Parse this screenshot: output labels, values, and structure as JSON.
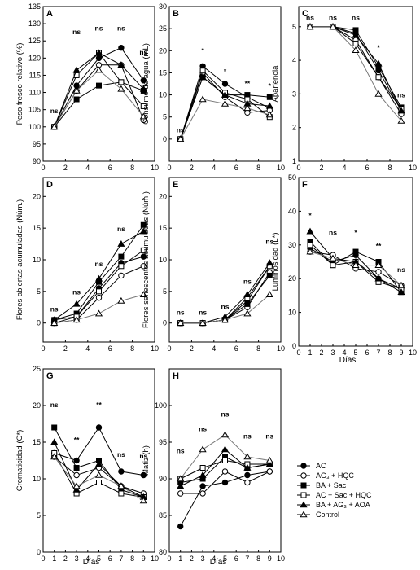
{
  "x_axis_label": "Días",
  "legend": {
    "entries": [
      {
        "id": "AC",
        "label": "AC",
        "marker": "filled-circle"
      },
      {
        "id": "AG3HQC",
        "label": "AG₃ + HQC",
        "marker": "open-circle"
      },
      {
        "id": "BASac",
        "label": "BA + Sac",
        "marker": "filled-square"
      },
      {
        "id": "ACSacHQC",
        "label": "AC + Sac + HQC",
        "marker": "open-square"
      },
      {
        "id": "BAAG3AOA",
        "label": "BA + AG₃ + AOA",
        "marker": "filled-triangle"
      },
      {
        "id": "Control",
        "label": "Control",
        "marker": "open-triangle"
      }
    ]
  },
  "chart_data": [
    {
      "panel": "A",
      "type": "line",
      "ylabel": "Peso fresco relativo (%)",
      "xlim": [
        0,
        10
      ],
      "ylim": [
        90,
        135
      ],
      "xticks": [
        0,
        2,
        4,
        6,
        8,
        10
      ],
      "yticks": [
        90,
        95,
        100,
        105,
        110,
        115,
        120,
        125,
        130,
        135
      ],
      "x": [
        1,
        3,
        5,
        7,
        9
      ],
      "series": [
        {
          "id": "AC",
          "values": [
            100,
            112,
            120,
            123,
            113.5
          ]
        },
        {
          "id": "AG3HQC",
          "values": [
            100,
            110.5,
            118,
            118,
            102
          ]
        },
        {
          "id": "BASac",
          "values": [
            100,
            108,
            112,
            113,
            110.5
          ]
        },
        {
          "id": "ACSacHQC",
          "values": [
            100,
            115,
            121.5,
            113,
            106
          ]
        },
        {
          "id": "BAAG3AOA",
          "values": [
            100,
            116.5,
            121.5,
            118,
            111
          ]
        },
        {
          "id": "Control",
          "values": [
            100,
            110.5,
            116.5,
            111,
            103
          ]
        }
      ],
      "annotations": [
        {
          "x": 1,
          "text": "ns",
          "y": 104
        },
        {
          "x": 3,
          "text": "ns",
          "y": 127
        },
        {
          "x": 5,
          "text": "ns",
          "y": 128
        },
        {
          "x": 7,
          "text": "ns",
          "y": 128
        },
        {
          "x": 9,
          "text": "ns",
          "y": 121
        }
      ]
    },
    {
      "panel": "B",
      "type": "line",
      "ylabel": "Consumo de agua (mL)",
      "xlim": [
        0,
        10
      ],
      "ylim": [
        -5,
        30
      ],
      "xticks": [
        0,
        2,
        4,
        6,
        8,
        10
      ],
      "yticks": [
        0,
        5,
        10,
        15,
        20,
        25,
        30
      ],
      "x": [
        1,
        3,
        5,
        7,
        9
      ],
      "series": [
        {
          "id": "AC",
          "values": [
            0,
            16.5,
            12.5,
            9.5,
            7
          ]
        },
        {
          "id": "AG3HQC",
          "values": [
            0,
            15,
            9.5,
            6,
            6.5
          ]
        },
        {
          "id": "BASac",
          "values": [
            0,
            14,
            10,
            10,
            9.5
          ]
        },
        {
          "id": "ACSacHQC",
          "values": [
            0,
            15.5,
            10.5,
            9,
            5
          ]
        },
        {
          "id": "BAAG3AOA",
          "values": [
            0,
            14,
            10,
            8,
            7.5
          ]
        },
        {
          "id": "Control",
          "values": [
            0,
            9,
            8,
            7,
            5.5
          ]
        }
      ],
      "annotations": [
        {
          "x": 1,
          "text": "ns",
          "y": 1.5
        },
        {
          "x": 3,
          "text": "*",
          "y": 19.5
        },
        {
          "x": 5,
          "text": "*",
          "y": 14.8
        },
        {
          "x": 7,
          "text": "**",
          "y": 12
        },
        {
          "x": 9,
          "text": "*",
          "y": 11.5
        }
      ]
    },
    {
      "panel": "C",
      "type": "line",
      "ylabel": "Apariencia",
      "xlim": [
        0,
        10
      ],
      "ylim": [
        1,
        5.6
      ],
      "xticks": [
        0,
        2,
        4,
        6,
        8,
        10
      ],
      "yticks": [
        1,
        2,
        3,
        4,
        5
      ],
      "x": [
        1,
        3,
        5,
        7,
        9
      ],
      "series": [
        {
          "id": "AC",
          "values": [
            5,
            5,
            4.8,
            3.7,
            2.5
          ]
        },
        {
          "id": "AG3HQC",
          "values": [
            5,
            5,
            4.6,
            3.5,
            2.4
          ]
        },
        {
          "id": "BASac",
          "values": [
            5,
            5,
            4.9,
            3.8,
            2.6
          ]
        },
        {
          "id": "ACSacHQC",
          "values": [
            5,
            5,
            4.5,
            3.5,
            2.55
          ]
        },
        {
          "id": "BAAG3AOA",
          "values": [
            5,
            5,
            4.75,
            3.9,
            2.5
          ]
        },
        {
          "id": "Control",
          "values": [
            5,
            5,
            4.3,
            3,
            2.2
          ]
        }
      ],
      "annotations": [
        {
          "x": 1,
          "text": "ns",
          "y": 5.2
        },
        {
          "x": 3,
          "text": "ns",
          "y": 5.2
        },
        {
          "x": 5,
          "text": "ns",
          "y": 5.2
        },
        {
          "x": 7,
          "text": "*",
          "y": 4.3
        },
        {
          "x": 9,
          "text": "ns",
          "y": 2.9
        }
      ]
    },
    {
      "panel": "D",
      "type": "line",
      "ylabel": "Flores abiertas acumuladas (Núm.)",
      "xlim": [
        0,
        10
      ],
      "ylim": [
        -3,
        23
      ],
      "xticks": [
        0,
        2,
        4,
        6,
        8,
        10
      ],
      "yticks": [
        0,
        5,
        10,
        15,
        20
      ],
      "x": [
        1,
        3,
        5,
        7,
        9
      ],
      "series": [
        {
          "id": "AC",
          "values": [
            0.5,
            1,
            5.5,
            9.5,
            10.5
          ]
        },
        {
          "id": "AG3HQC",
          "values": [
            0,
            0.5,
            4,
            7.5,
            9
          ]
        },
        {
          "id": "BASac",
          "values": [
            0.5,
            1.5,
            6.5,
            10.5,
            15.5
          ]
        },
        {
          "id": "ACSacHQC",
          "values": [
            0,
            1,
            5,
            9,
            11.5
          ]
        },
        {
          "id": "BAAG3AOA",
          "values": [
            0.5,
            3,
            7,
            12.5,
            14.5
          ]
        },
        {
          "id": "Control",
          "values": [
            0,
            0.5,
            1.5,
            3.5,
            4.5
          ]
        }
      ],
      "annotations": [
        {
          "x": 1,
          "text": "ns",
          "y": 1.8
        },
        {
          "x": 3,
          "text": "ns",
          "y": 4.5
        },
        {
          "x": 5,
          "text": "ns",
          "y": 9
        },
        {
          "x": 7,
          "text": "ns",
          "y": 14.5
        },
        {
          "x": 9,
          "text": "*",
          "y": 19
        }
      ]
    },
    {
      "panel": "E",
      "type": "line",
      "ylabel": "Flores senescentes acumuladas (Núm.)",
      "xlim": [
        0,
        10
      ],
      "ylim": [
        -3,
        23
      ],
      "xticks": [
        0,
        2,
        4,
        6,
        8,
        10
      ],
      "yticks": [
        0,
        5,
        10,
        15,
        20
      ],
      "x": [
        1,
        3,
        5,
        7,
        9
      ],
      "series": [
        {
          "id": "AC",
          "values": [
            0,
            0,
            0.5,
            3.5,
            9
          ]
        },
        {
          "id": "AG3HQC",
          "values": [
            0,
            0,
            0.5,
            2.5,
            8
          ]
        },
        {
          "id": "BASac",
          "values": [
            0,
            0,
            0.5,
            3,
            7.5
          ]
        },
        {
          "id": "ACSacHQC",
          "values": [
            0,
            0,
            0.5,
            4,
            9
          ]
        },
        {
          "id": "BAAG3AOA",
          "values": [
            0,
            0,
            1,
            4.5,
            9.5
          ]
        },
        {
          "id": "Control",
          "values": [
            0,
            0,
            0.5,
            1.5,
            4.5
          ]
        }
      ],
      "annotations": [
        {
          "x": 1,
          "text": "ns",
          "y": 1.3
        },
        {
          "x": 3,
          "text": "ns",
          "y": 1.3
        },
        {
          "x": 5,
          "text": "ns",
          "y": 2.2
        },
        {
          "x": 7,
          "text": "ns",
          "y": 6.2
        },
        {
          "x": 9,
          "text": "ns",
          "y": 12.5
        }
      ]
    },
    {
      "panel": "F",
      "type": "line",
      "ylabel": "Luminosidad (L*)",
      "xlabel": "Días",
      "xlim": [
        0,
        10
      ],
      "ylim": [
        0,
        50
      ],
      "xticks": [
        0,
        1,
        2,
        3,
        4,
        5,
        6,
        7,
        8,
        9,
        10
      ],
      "yticks": [
        0,
        10,
        20,
        30,
        40,
        50
      ],
      "x": [
        1,
        3,
        5,
        7,
        9
      ],
      "series": [
        {
          "id": "AC",
          "values": [
            29,
            25,
            27,
            20,
            17
          ]
        },
        {
          "id": "AG3HQC",
          "values": [
            28,
            27,
            23,
            22,
            18
          ]
        },
        {
          "id": "BASac",
          "values": [
            31,
            24,
            28,
            25,
            16
          ]
        },
        {
          "id": "ACSacHQC",
          "values": [
            30,
            24,
            25,
            19,
            17
          ]
        },
        {
          "id": "BAAG3AOA",
          "values": [
            34,
            26,
            25,
            20,
            16
          ]
        },
        {
          "id": "Control",
          "values": [
            28,
            26,
            24,
            24,
            18
          ]
        }
      ],
      "annotations": [
        {
          "x": 1,
          "text": "*",
          "y": 38
        },
        {
          "x": 3,
          "text": "ns",
          "y": 33
        },
        {
          "x": 5,
          "text": "*",
          "y": 33
        },
        {
          "x": 7,
          "text": "**",
          "y": 29
        },
        {
          "x": 9,
          "text": "ns",
          "y": 22
        }
      ]
    },
    {
      "panel": "G",
      "type": "line",
      "ylabel": "Cromaticidad (C*)",
      "xlabel": "Días",
      "xlim": [
        0,
        10
      ],
      "ylim": [
        0,
        25
      ],
      "xticks": [
        0,
        1,
        2,
        3,
        4,
        5,
        6,
        7,
        8,
        9,
        10
      ],
      "yticks": [
        0,
        5,
        10,
        15,
        20,
        25
      ],
      "x": [
        1,
        3,
        5,
        7,
        9
      ],
      "series": [
        {
          "id": "AC",
          "values": [
            13.5,
            12.5,
            17,
            11,
            10.5
          ]
        },
        {
          "id": "AG3HQC",
          "values": [
            13,
            10.5,
            11.5,
            9,
            8
          ]
        },
        {
          "id": "BASac",
          "values": [
            17,
            11.5,
            12.5,
            8.5,
            7.5
          ]
        },
        {
          "id": "ACSacHQC",
          "values": [
            13.5,
            8,
            9.5,
            8,
            7.5
          ]
        },
        {
          "id": "BAAG3AOA",
          "values": [
            15,
            8.5,
            12,
            9,
            7.5
          ]
        },
        {
          "id": "Control",
          "values": [
            13,
            9,
            10.5,
            9,
            7
          ]
        }
      ],
      "annotations": [
        {
          "x": 1,
          "text": "ns",
          "y": 19.8
        },
        {
          "x": 3,
          "text": "**",
          "y": 15
        },
        {
          "x": 5,
          "text": "**",
          "y": 19.8
        },
        {
          "x": 7,
          "text": "ns",
          "y": 13
        },
        {
          "x": 9,
          "text": "ns",
          "y": 12.8
        }
      ]
    },
    {
      "panel": "H",
      "type": "line",
      "ylabel": "Matiz (h)",
      "xlabel": "Días",
      "xlim": [
        0,
        10
      ],
      "ylim": [
        80,
        105
      ],
      "xticks": [
        0,
        1,
        2,
        3,
        4,
        5,
        6,
        7,
        8,
        9,
        10
      ],
      "yticks": [
        80,
        85,
        90,
        95,
        100
      ],
      "x": [
        1,
        3,
        5,
        7,
        9
      ],
      "series": [
        {
          "id": "AC",
          "values": [
            83.5,
            89,
            89.5,
            90.5,
            91
          ]
        },
        {
          "id": "AG3HQC",
          "values": [
            88,
            88,
            91,
            89.5,
            91
          ]
        },
        {
          "id": "BASac",
          "values": [
            89.5,
            90,
            93,
            91.5,
            92
          ]
        },
        {
          "id": "ACSacHQC",
          "values": [
            90,
            91.5,
            92.5,
            92,
            92
          ]
        },
        {
          "id": "BAAG3AOA",
          "values": [
            89,
            90.5,
            94,
            91.5,
            92
          ]
        },
        {
          "id": "Control",
          "values": [
            90,
            94,
            96,
            93,
            92.5
          ]
        }
      ],
      "annotations": [
        {
          "x": 1,
          "text": "ns",
          "y": 93.5
        },
        {
          "x": 3,
          "text": "ns",
          "y": 96.5
        },
        {
          "x": 5,
          "text": "ns",
          "y": 98.5
        },
        {
          "x": 7,
          "text": "ns",
          "y": 95.5
        },
        {
          "x": 9,
          "text": "ns",
          "y": 95.5
        }
      ]
    }
  ]
}
